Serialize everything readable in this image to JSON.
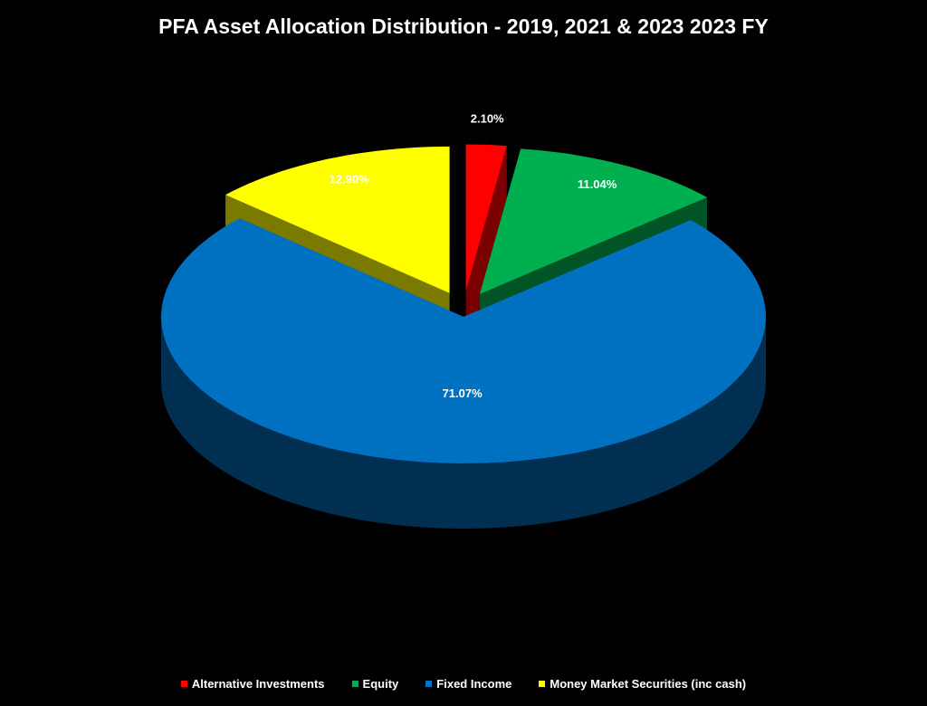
{
  "chart_data": {
    "type": "pie",
    "title": "PFA Asset Allocation Distribution - 2019, 2021 & 2023 2023 FY",
    "categories": [
      "Alternative Investments",
      "Equity",
      "Fixed Income",
      "Money Market Securities (inc cash)"
    ],
    "values": [
      2.1,
      11.04,
      71.07,
      12.9
    ],
    "data_labels": [
      "2.10%",
      "11.04%",
      "71.07%",
      "12.90%"
    ],
    "colors": [
      "#ff0000",
      "#00b050",
      "#0070c0",
      "#ffff00"
    ],
    "style": "3d-exploded",
    "legend_position": "bottom"
  }
}
